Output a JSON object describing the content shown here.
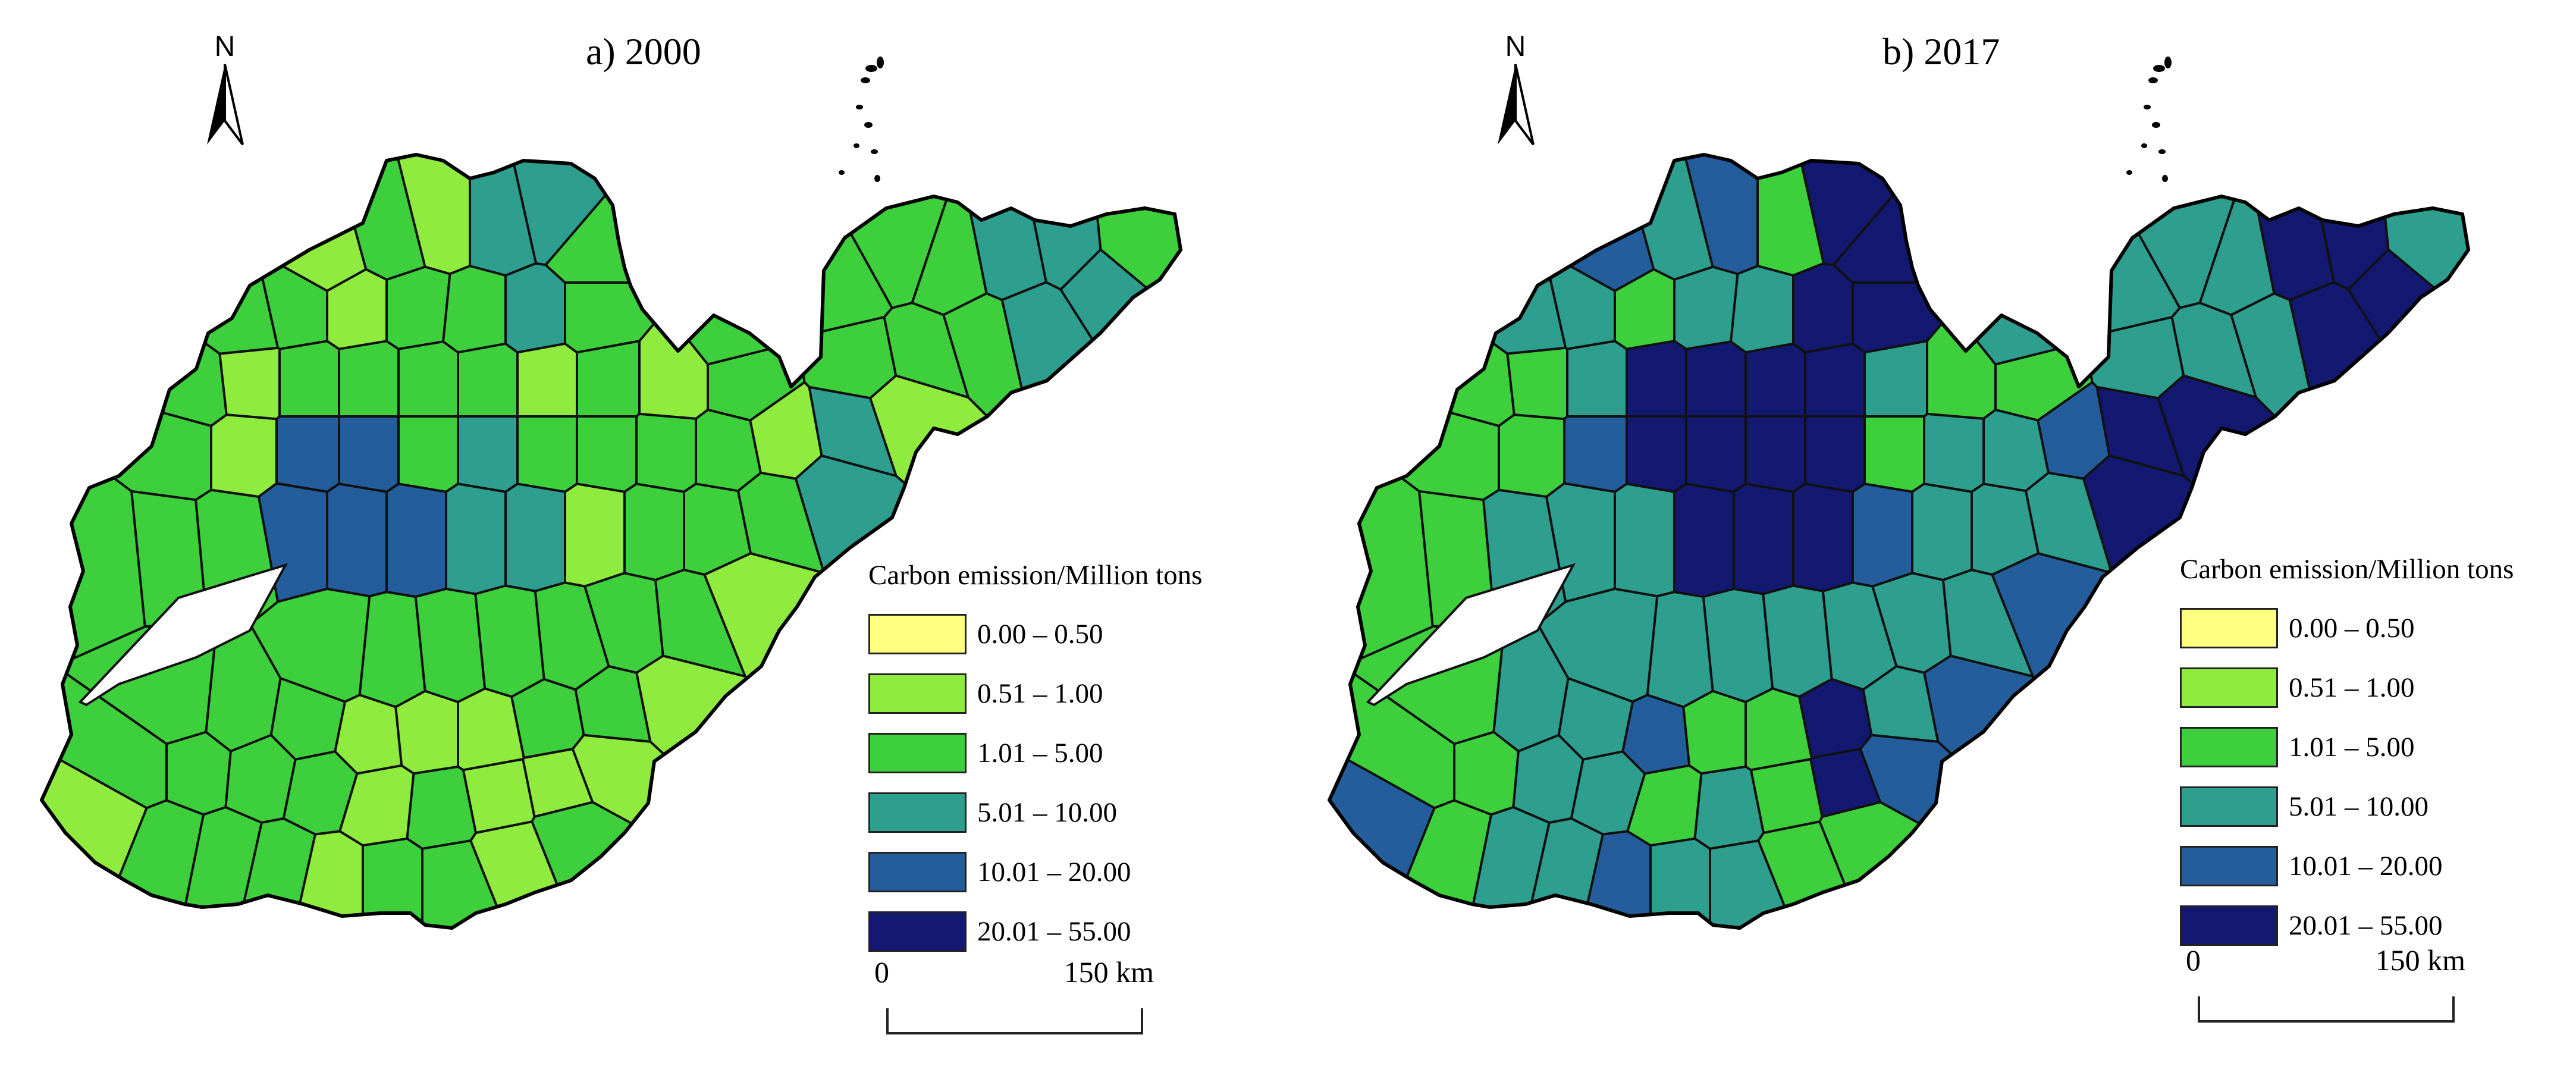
{
  "panels": [
    {
      "title": "a) 2000",
      "north_label": "N"
    },
    {
      "title": "b) 2017",
      "north_label": "N"
    }
  ],
  "legend": {
    "title": "Carbon emission/Million tons",
    "classes": [
      {
        "label": "0.00 – 0.50",
        "color": "#ffff80"
      },
      {
        "label": "0.51 – 1.00",
        "color": "#8fec3f"
      },
      {
        "label": "1.01 – 5.00",
        "color": "#3ecf3c"
      },
      {
        "label": "5.01 – 10.00",
        "color": "#2e9e8e"
      },
      {
        "label": "10.01 – 20.00",
        "color": "#235d9c"
      },
      {
        "label": "20.01 – 55.00",
        "color": "#131870"
      }
    ]
  },
  "scalebar": {
    "start": "0",
    "end": "150 km"
  }
}
